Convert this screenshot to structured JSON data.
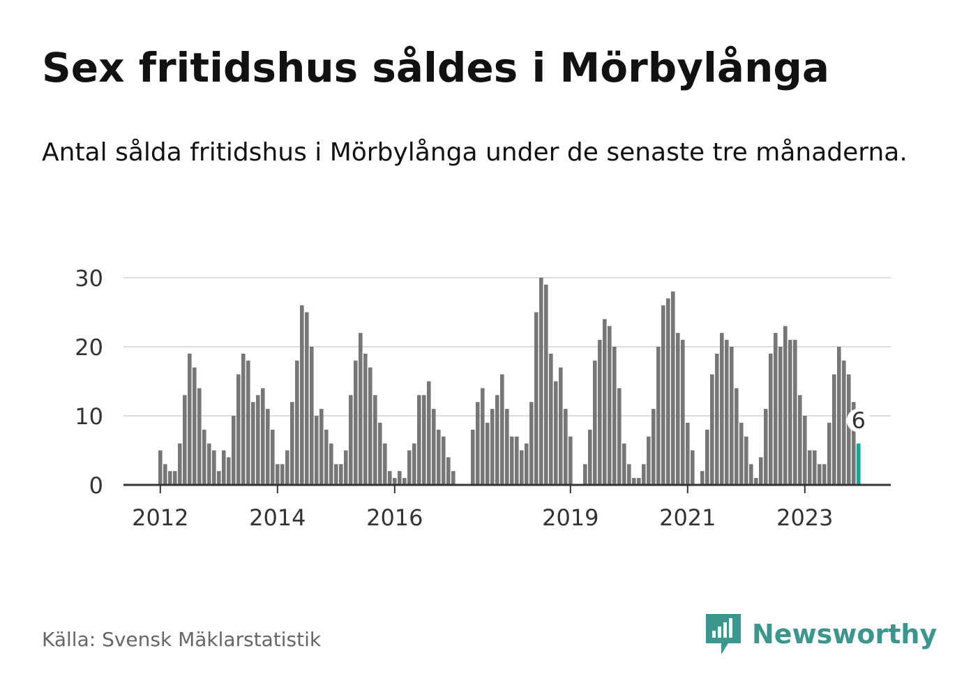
{
  "title": "Sex fritidshus såldes i Mörbylånga",
  "subtitle": "Antal sålda fritidshus i Mörbylånga under de senaste tre månaderna.",
  "source": "Källa: Svensk Mäklarstatistik",
  "brand": "Newsworthy",
  "colors": {
    "bar": "#767676",
    "highlight": "#1aa59a",
    "grid": "#dddddd",
    "axis": "#333333",
    "brand": "#3b968e"
  },
  "chart_data": {
    "type": "bar",
    "x_ticks": [
      "2012",
      "2014",
      "2016",
      "2019",
      "2021",
      "2023"
    ],
    "y_ticks": [
      0,
      10,
      20,
      30
    ],
    "ylim": [
      0,
      30
    ],
    "annotation": "6",
    "series": [
      {
        "start": "2012-01",
        "values": [
          5,
          3,
          2,
          2,
          6,
          13,
          19,
          17,
          14,
          8,
          6,
          5,
          2,
          5,
          4,
          10,
          16,
          19,
          18,
          12,
          13,
          14,
          11,
          8,
          3,
          3,
          5,
          12,
          18,
          26,
          25,
          20,
          10,
          11,
          8,
          6,
          3,
          3,
          5,
          13,
          18,
          22,
          19,
          17,
          13,
          9,
          6,
          2,
          1,
          2,
          1,
          5,
          6,
          13,
          13,
          15,
          11,
          8,
          7,
          4,
          2,
          0,
          0,
          0,
          8,
          12,
          14,
          9,
          11,
          13,
          16,
          11,
          7,
          7,
          5,
          6,
          12,
          25,
          30,
          29,
          19,
          15,
          17,
          11,
          7,
          0,
          0,
          3,
          8,
          18,
          21,
          24,
          23,
          20,
          14,
          6,
          3,
          1,
          1,
          3,
          7,
          11,
          20,
          26,
          27,
          28,
          22,
          21,
          9,
          5,
          0,
          2,
          8,
          16,
          19,
          22,
          21,
          20,
          14,
          9,
          7,
          3,
          1,
          4,
          11,
          19,
          22,
          20,
          23,
          21,
          21,
          13,
          10,
          5,
          5,
          3,
          3,
          9,
          16,
          20,
          18,
          16,
          12,
          6
        ]
      }
    ]
  }
}
